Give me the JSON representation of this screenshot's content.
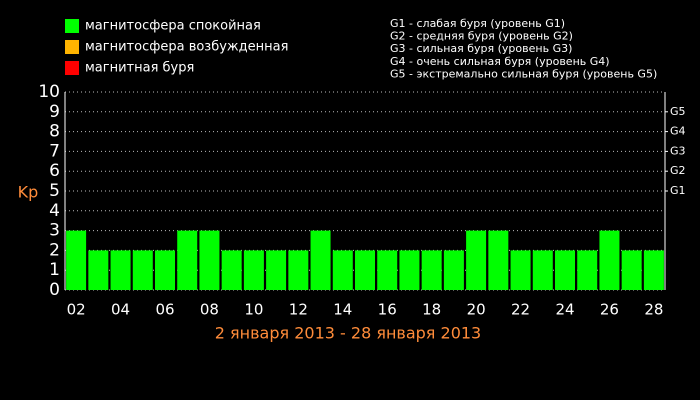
{
  "chart_data": {
    "type": "bar",
    "legend": [
      {
        "label": "магнитосфера спокойная",
        "color": "#00ff00"
      },
      {
        "label": "магнитосфера возбужденная",
        "color": "#ffb400"
      },
      {
        "label": "магнитная буря",
        "color": "#ff0000"
      }
    ],
    "scale_notes": [
      "G1 - слабая буря (уровень G1)",
      "G2 - средняя буря (уровень G2)",
      "G3 - сильная буря (уровень G3)",
      "G4 - очень сильная буря (уровень G4)",
      "G5 - экстремально сильная буря (уровень G5)"
    ],
    "ylabel": "Kp",
    "xlabel": "2 января 2013 - 28 января 2013",
    "categories": [
      "02",
      null,
      "04",
      null,
      "06",
      null,
      "08",
      null,
      "10",
      null,
      "12",
      null,
      "14",
      null,
      "16",
      null,
      "18",
      null,
      "20",
      null,
      "22",
      null,
      "24",
      null,
      "26",
      null,
      "28"
    ],
    "values": [
      3,
      2,
      2,
      2,
      2,
      3,
      3,
      2,
      2,
      2,
      2,
      3,
      2,
      2,
      2,
      2,
      2,
      2,
      3,
      3,
      2,
      2,
      2,
      2,
      3,
      2,
      2
    ],
    "color": "#00ff00",
    "ylim": [
      0,
      10
    ],
    "yticks": [
      0,
      1,
      2,
      3,
      4,
      5,
      6,
      7,
      8,
      9,
      10
    ],
    "y2lim": [
      0,
      10
    ],
    "y2ticks": [
      {
        "value": 5,
        "label": "G1"
      },
      {
        "value": 6,
        "label": "G2"
      },
      {
        "value": 7,
        "label": "G3"
      },
      {
        "value": 8,
        "label": "G4"
      },
      {
        "value": 9,
        "label": "G5"
      }
    ],
    "grid": true
  }
}
